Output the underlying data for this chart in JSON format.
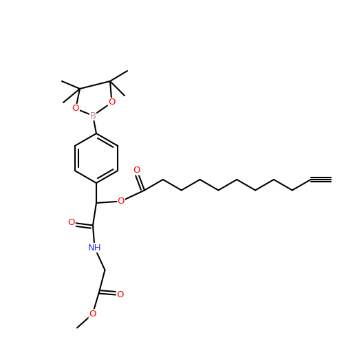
{
  "bg_color": "#ffffff",
  "bond_color": "#000000",
  "o_color": "#ff0000",
  "n_color": "#3333ff",
  "b_color": "#ff9999",
  "line_width": 1.5,
  "font_size": 9.5,
  "fig_size": [
    5.0,
    5.0
  ],
  "dpi": 100,
  "xlim": [
    0,
    10
  ],
  "ylim": [
    0,
    10
  ]
}
